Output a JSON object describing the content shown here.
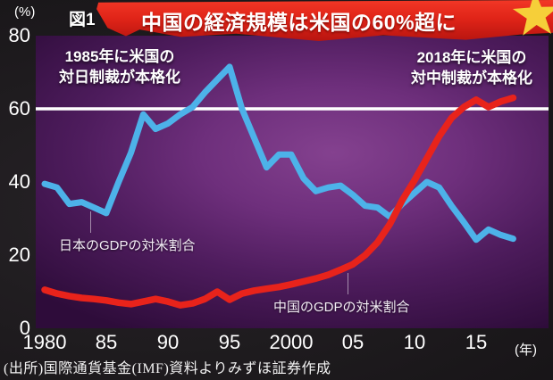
{
  "header": {
    "unit_label": "(%)",
    "figure_label": "図1",
    "title": "中国の経済規模は米国の60%超に"
  },
  "annotations": {
    "japan_event": {
      "line1": "1985年に米国の",
      "line2": "対日制裁が本格化"
    },
    "china_event": {
      "line1": "2018年に米国の",
      "line2": "対中制裁が本格化"
    }
  },
  "series_labels": {
    "japan": "日本のGDPの対米割合",
    "china": "中国のGDPの対米割合"
  },
  "axis": {
    "x_unit": "(年)",
    "x_tick_labels": [
      "1980",
      "85",
      "90",
      "95",
      "2000",
      "05",
      "10",
      "15"
    ],
    "x_tick_years": [
      1980,
      1985,
      1990,
      1995,
      2000,
      2005,
      2010,
      2015
    ],
    "y_tick_labels": [
      "80",
      "60",
      "40",
      "20",
      "0"
    ],
    "y_tick_values": [
      80,
      60,
      40,
      20,
      0
    ]
  },
  "source": "(出所)国際通貨基金(IMF)資料よりみずほ証券作成",
  "colors": {
    "japan_line": "#4db2e9",
    "china_line": "#e8231b",
    "reference_line": "#ffffff",
    "banner_red": "#e02418",
    "star_yellow": "#f6cf39",
    "plot_purple": "#6e2f7c"
  },
  "chart_data": {
    "type": "line",
    "title": "中国の経済規模は米国の60%超に",
    "xlabel": "年",
    "ylabel": "%",
    "ylim": [
      0,
      80
    ],
    "xlim": [
      1980,
      2018
    ],
    "grid": false,
    "reference_line_y": 60,
    "legend_position": "inline-labels",
    "x": [
      1980,
      1981,
      1982,
      1983,
      1984,
      1985,
      1986,
      1987,
      1988,
      1989,
      1990,
      1991,
      1992,
      1993,
      1994,
      1995,
      1996,
      1997,
      1998,
      1999,
      2000,
      2001,
      2002,
      2003,
      2004,
      2005,
      2006,
      2007,
      2008,
      2009,
      2010,
      2011,
      2012,
      2013,
      2014,
      2015,
      2016,
      2017,
      2018
    ],
    "series": [
      {
        "name": "日本のGDPの対米割合",
        "color": "#4db2e9",
        "values": [
          39.5,
          38.5,
          34.0,
          34.5,
          33.0,
          31.5,
          40.0,
          48.0,
          58.5,
          54.5,
          56.0,
          58.5,
          60.5,
          64.5,
          68.0,
          71.5,
          60.0,
          52.0,
          44.0,
          47.5,
          47.5,
          41.0,
          37.5,
          38.5,
          39.0,
          36.5,
          33.5,
          33.0,
          30.5,
          34.0,
          37.0,
          40.0,
          38.5,
          33.5,
          29.0,
          24.2,
          27.0,
          25.5,
          24.5
        ]
      },
      {
        "name": "中国のGDPの対米割合",
        "color": "#e8231b",
        "values": [
          10.5,
          9.5,
          8.8,
          8.3,
          8.0,
          7.6,
          7.0,
          6.6,
          7.3,
          8.0,
          7.3,
          6.3,
          6.8,
          8.0,
          10.0,
          7.8,
          9.5,
          10.3,
          10.8,
          11.3,
          12.0,
          12.8,
          13.6,
          14.6,
          16.0,
          17.5,
          20.0,
          23.5,
          28.5,
          35.0,
          40.5,
          46.5,
          52.5,
          57.5,
          60.5,
          62.5,
          60.5,
          62.0,
          63.0
        ]
      }
    ]
  }
}
